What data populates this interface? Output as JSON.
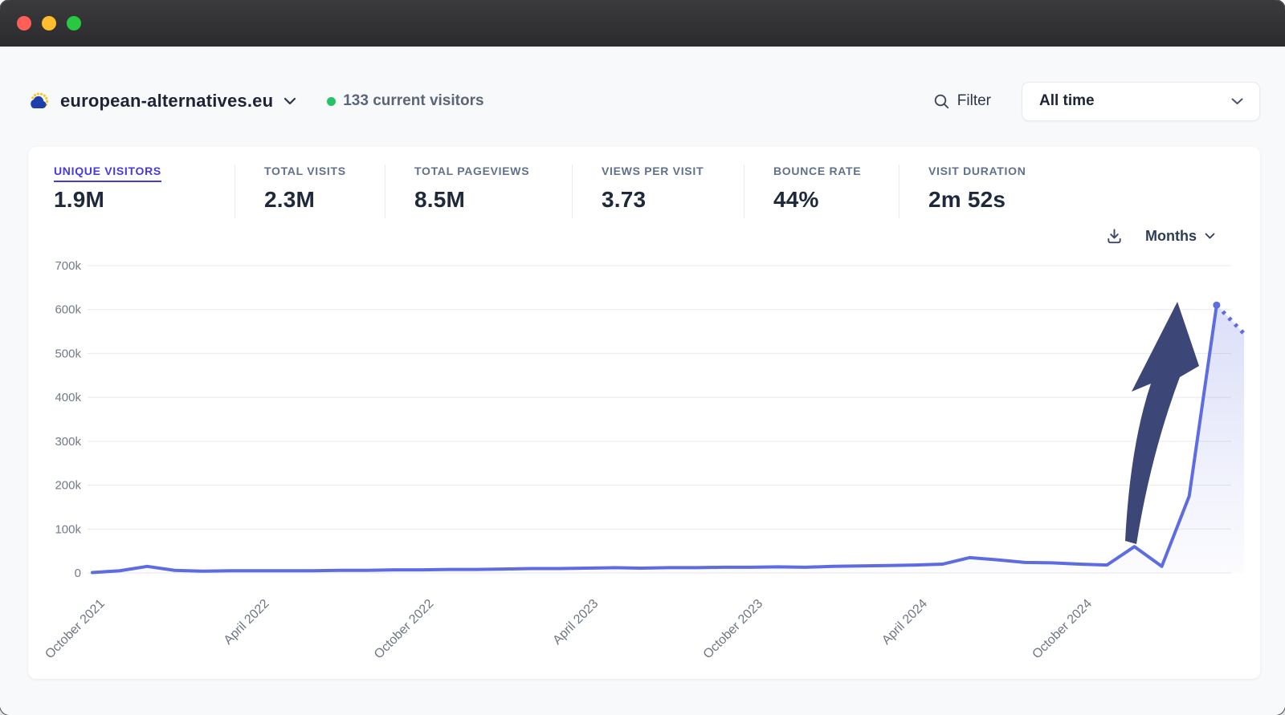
{
  "window": {
    "traffic_lights": [
      "#ff5f57",
      "#febc2e",
      "#28c840"
    ]
  },
  "theme": {
    "accent": "#4639e4",
    "line_color": "#5d6ce0",
    "arrow_color": "#3d4777",
    "visitor_dot": "#23c464"
  },
  "header": {
    "favicon": "eu-cloud-favicon",
    "site_domain": "european-alternatives.eu",
    "site_chevron": "chevron-down-icon",
    "current_visitors": {
      "count": "133",
      "label": "current visitors"
    },
    "filter": {
      "icon": "magnifier-icon",
      "label": "Filter"
    },
    "date_range": {
      "value": "All time",
      "icon": "chevron-down-icon"
    }
  },
  "stats": {
    "items": [
      {
        "label": "UNIQUE VISITORS",
        "value": "1.9M",
        "selected": true
      },
      {
        "label": "TOTAL VISITS",
        "value": "2.3M",
        "selected": false
      },
      {
        "label": "TOTAL PAGEVIEWS",
        "value": "8.5M",
        "selected": false
      },
      {
        "label": "VIEWS PER VISIT",
        "value": "3.73",
        "selected": false
      },
      {
        "label": "BOUNCE RATE",
        "value": "44%",
        "selected": false
      },
      {
        "label": "VISIT DURATION",
        "value": "2m 52s",
        "selected": false
      }
    ]
  },
  "chart_controls": {
    "download_icon": "download-icon",
    "interval": "Months",
    "interval_chevron": "chevron-down-icon"
  },
  "chart_data": {
    "type": "area",
    "metric": "Unique visitors",
    "x": [
      "Oct 2021",
      "Nov 2021",
      "Dec 2021",
      "Jan 2022",
      "Feb 2022",
      "Mar 2022",
      "Apr 2022",
      "May 2022",
      "Jun 2022",
      "Jul 2022",
      "Aug 2022",
      "Sep 2022",
      "Oct 2022",
      "Nov 2022",
      "Dec 2022",
      "Jan 2023",
      "Feb 2023",
      "Mar 2023",
      "Apr 2023",
      "May 2023",
      "Jun 2023",
      "Jul 2023",
      "Aug 2023",
      "Sep 2023",
      "Oct 2023",
      "Nov 2023",
      "Dec 2023",
      "Jan 2024",
      "Feb 2024",
      "Mar 2024",
      "Apr 2024",
      "May 2024",
      "Jun 2024",
      "Jul 2024",
      "Aug 2024",
      "Sep 2024",
      "Oct 2024",
      "Nov 2024",
      "Dec 2024",
      "Jan 2025",
      "Feb 2025",
      "Mar 2025",
      "Apr 2025"
    ],
    "values": [
      1000,
      5000,
      15000,
      6000,
      4000,
      5000,
      5000,
      5000,
      5000,
      6000,
      6000,
      7000,
      7000,
      8000,
      8000,
      9000,
      10000,
      10000,
      11000,
      12000,
      11000,
      12000,
      12000,
      13000,
      13000,
      14000,
      13000,
      15000,
      16000,
      17000,
      18000,
      20000,
      35000,
      30000,
      24000,
      23000,
      20000,
      18000,
      60000,
      15000,
      175000,
      610000,
      545000
    ],
    "last_point_partial": true,
    "x_tick_indices": [
      0,
      6,
      12,
      18,
      24,
      30,
      36
    ],
    "x_tick_labels": [
      "October 2021",
      "April 2022",
      "October 2022",
      "April 2023",
      "October 2023",
      "April 2024",
      "October 2024"
    ],
    "y_ticks": [
      "0",
      "100k",
      "200k",
      "300k",
      "400k",
      "500k",
      "600k",
      "700k"
    ],
    "ylim": [
      0,
      700000
    ],
    "grid": true,
    "legend": "none",
    "annotation": {
      "type": "arrow-up",
      "color": "#3d4777"
    }
  }
}
